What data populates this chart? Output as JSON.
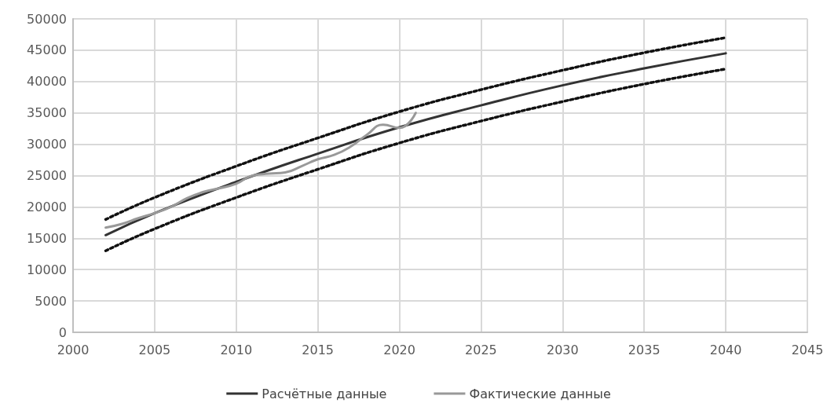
{
  "chart_data": {
    "type": "line",
    "xlim": [
      2000,
      2045
    ],
    "xticks": [
      2000,
      2005,
      2010,
      2015,
      2020,
      2025,
      2030,
      2035,
      2040,
      2045
    ],
    "ylim": [
      0,
      50000
    ],
    "yticks": [
      0,
      5000,
      10000,
      15000,
      20000,
      25000,
      30000,
      35000,
      40000,
      45000,
      50000
    ],
    "grid": true,
    "legend": "bottom",
    "marker": "none",
    "series": [
      {
        "name": "Расчётные данные",
        "color": "#333333",
        "x": [
          2002,
          2005,
          2010,
          2015,
          2020,
          2025,
          2030,
          2035,
          2040
        ],
        "values": [
          15500,
          19000,
          24000,
          28500,
          32700,
          36200,
          39400,
          42100,
          44500
        ]
      },
      {
        "name": "Фактические данные",
        "color": "#999999",
        "x": [
          2002,
          2003,
          2004,
          2005,
          2006,
          2007,
          2008,
          2009,
          2010,
          2011,
          2012,
          2013,
          2014,
          2015,
          2016,
          2017,
          2018,
          2019,
          2020,
          2021
        ],
        "values": [
          16700,
          17300,
          18200,
          19000,
          20000,
          21400,
          22400,
          23000,
          23700,
          25000,
          25300,
          25500,
          26500,
          27600,
          28300,
          29600,
          31500,
          33100,
          32600,
          35000
        ]
      },
      {
        "color": "#111111",
        "line_style": "dotted",
        "x": [
          2002,
          2005,
          2010,
          2015,
          2020,
          2025,
          2030,
          2035,
          2040
        ],
        "values": [
          18000,
          21500,
          26500,
          31000,
          35200,
          38700,
          41800,
          44600,
          47000
        ]
      },
      {
        "color": "#111111",
        "line_style": "dotted",
        "x": [
          2002,
          2005,
          2010,
          2015,
          2020,
          2025,
          2030,
          2035,
          2040
        ],
        "values": [
          13000,
          16500,
          21500,
          26000,
          30200,
          33700,
          36800,
          39600,
          42000
        ]
      }
    ]
  }
}
